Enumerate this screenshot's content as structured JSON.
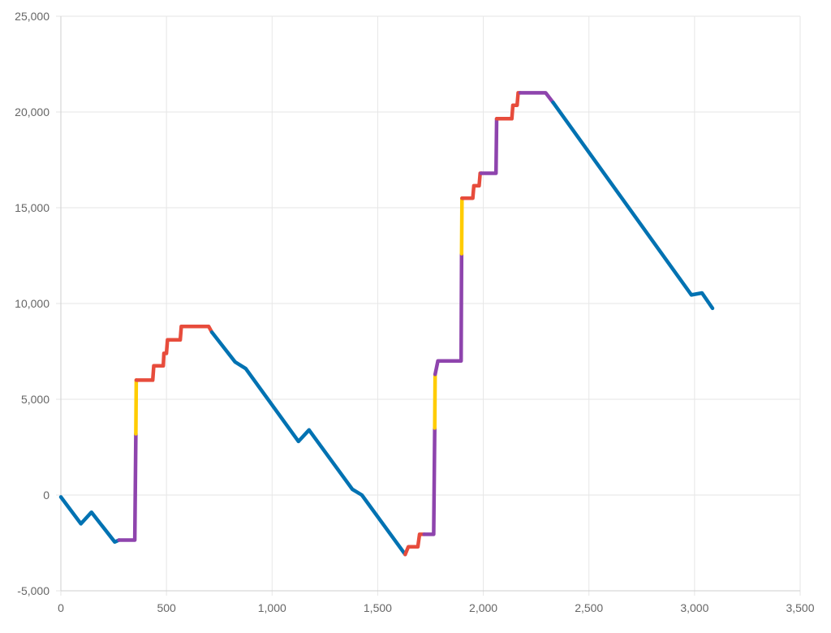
{
  "chart_data": {
    "type": "line",
    "title": "",
    "xlabel": "",
    "ylabel": "",
    "xlim": [
      0,
      3500
    ],
    "ylim": [
      -5000,
      25000
    ],
    "x_ticks": [
      0,
      500,
      1000,
      1500,
      2000,
      2500,
      3000,
      3500
    ],
    "y_ticks": [
      -5000,
      0,
      5000,
      10000,
      15000,
      20000,
      25000
    ],
    "x_tick_labels": [
      "0",
      "500",
      "1,000",
      "1,500",
      "2,000",
      "2,500",
      "3,000",
      "3,500"
    ],
    "y_tick_labels": [
      "-5,000",
      "0",
      "5,000",
      "10,000",
      "15,000",
      "20,000",
      "25,000"
    ],
    "grid": true,
    "legend": "none",
    "segments": [
      {
        "color": "#0072b2",
        "points": [
          [
            0,
            -100
          ],
          [
            95,
            -1500
          ],
          [
            145,
            -900
          ],
          [
            255,
            -2450
          ],
          [
            275,
            -2350
          ]
        ]
      },
      {
        "color": "#8e44ad",
        "points": [
          [
            275,
            -2350
          ],
          [
            350,
            -2350
          ],
          [
            355,
            3200
          ]
        ]
      },
      {
        "color": "#ffcc00",
        "points": [
          [
            355,
            3200
          ],
          [
            357,
            6000
          ]
        ]
      },
      {
        "color": "#e74c3c",
        "points": [
          [
            357,
            6000
          ],
          [
            435,
            6000
          ],
          [
            440,
            6750
          ],
          [
            485,
            6750
          ],
          [
            488,
            7400
          ],
          [
            500,
            7400
          ],
          [
            505,
            8100
          ],
          [
            565,
            8100
          ],
          [
            570,
            8800
          ],
          [
            700,
            8800
          ],
          [
            715,
            8500
          ]
        ]
      },
      {
        "color": "#0072b2",
        "points": [
          [
            715,
            8500
          ],
          [
            825,
            6950
          ],
          [
            875,
            6600
          ],
          [
            1125,
            2800
          ],
          [
            1175,
            3400
          ],
          [
            1380,
            300
          ],
          [
            1425,
            0
          ],
          [
            1630,
            -3100
          ]
        ]
      },
      {
        "color": "#e74c3c",
        "points": [
          [
            1630,
            -3100
          ],
          [
            1645,
            -2700
          ],
          [
            1690,
            -2700
          ],
          [
            1698,
            -2050
          ],
          [
            1720,
            -2050
          ]
        ]
      },
      {
        "color": "#8e44ad",
        "points": [
          [
            1720,
            -2050
          ],
          [
            1765,
            -2050
          ],
          [
            1770,
            3500
          ]
        ]
      },
      {
        "color": "#ffcc00",
        "points": [
          [
            1770,
            3500
          ],
          [
            1772,
            6300
          ]
        ]
      },
      {
        "color": "#8e44ad",
        "points": [
          [
            1772,
            6300
          ],
          [
            1785,
            7000
          ],
          [
            1895,
            7000
          ],
          [
            1897,
            12600
          ]
        ]
      },
      {
        "color": "#ffcc00",
        "points": [
          [
            1897,
            12600
          ],
          [
            1899,
            15500
          ]
        ]
      },
      {
        "color": "#e74c3c",
        "points": [
          [
            1899,
            15500
          ],
          [
            1950,
            15500
          ],
          [
            1955,
            16150
          ],
          [
            1980,
            16150
          ],
          [
            1985,
            16800
          ],
          [
            1990,
            16800
          ]
        ]
      },
      {
        "color": "#8e44ad",
        "points": [
          [
            1990,
            16800
          ],
          [
            2060,
            16800
          ],
          [
            2063,
            19650
          ]
        ]
      },
      {
        "color": "#e74c3c",
        "points": [
          [
            2063,
            19650
          ],
          [
            2135,
            19650
          ],
          [
            2140,
            20350
          ],
          [
            2160,
            20350
          ],
          [
            2165,
            21000
          ],
          [
            2175,
            21000
          ]
        ]
      },
      {
        "color": "#8e44ad",
        "points": [
          [
            2175,
            21000
          ],
          [
            2295,
            21000
          ],
          [
            2330,
            20500
          ]
        ]
      },
      {
        "color": "#0072b2",
        "points": [
          [
            2330,
            20500
          ],
          [
            2985,
            10450
          ],
          [
            3035,
            10550
          ],
          [
            3085,
            9750
          ]
        ]
      }
    ]
  }
}
